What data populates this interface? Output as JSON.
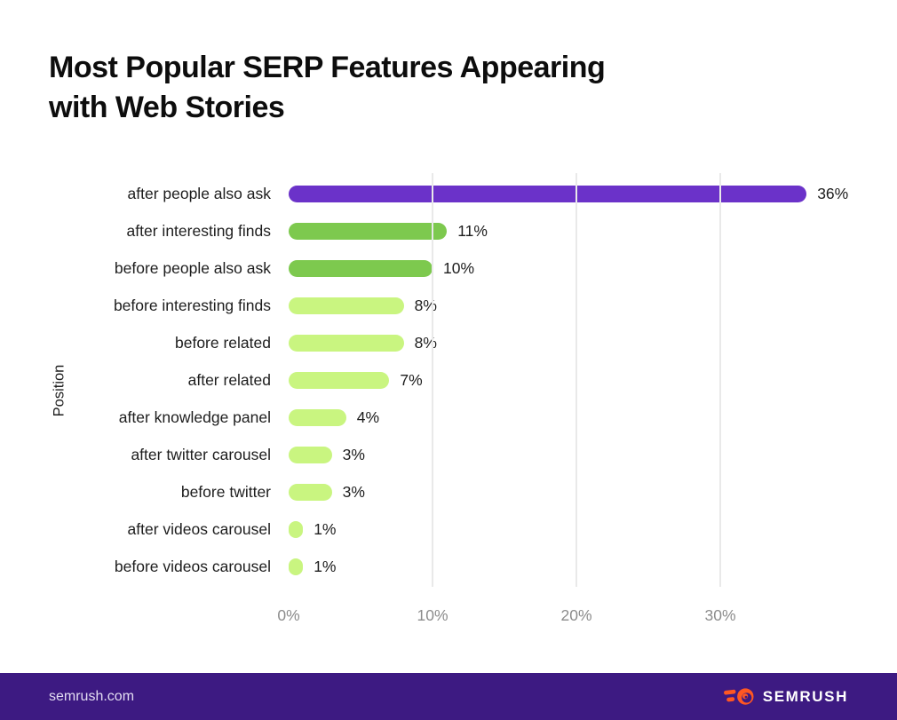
{
  "title": {
    "line1": "Most Popular SERP Features Appearing",
    "line2": "with Web Stories"
  },
  "chart_data": {
    "type": "bar",
    "orientation": "horizontal",
    "title": "Most Popular SERP Features Appearing with Web Stories",
    "ylabel": "Position",
    "xlabel": "",
    "xlim": [
      0,
      40
    ],
    "grid": true,
    "x_ticks": [
      {
        "value": 0,
        "label": "0%"
      },
      {
        "value": 10,
        "label": "10%"
      },
      {
        "value": 20,
        "label": "20%"
      },
      {
        "value": 30,
        "label": "30%"
      }
    ],
    "categories": [
      "after people also ask",
      "after interesting finds",
      "before people also ask",
      "before interesting finds",
      "before related",
      "after related",
      "after knowledge panel",
      "after twitter carousel",
      "before twitter",
      "after videos carousel",
      "before videos carousel"
    ],
    "values": [
      36,
      11,
      10,
      8,
      8,
      7,
      4,
      3,
      3,
      1,
      1
    ],
    "value_labels": [
      "36%",
      "11%",
      "10%",
      "8%",
      "8%",
      "7%",
      "4%",
      "3%",
      "3%",
      "1%",
      "1%"
    ],
    "bar_colors": [
      "#6b32c9",
      "#7dc94e",
      "#7dc94e",
      "#c9f580",
      "#c9f580",
      "#c9f580",
      "#c9f580",
      "#c9f580",
      "#c9f580",
      "#c9f580",
      "#c9f580"
    ]
  },
  "colors": {
    "bar_purple": "#6b32c9",
    "bar_green": "#7dc94e",
    "bar_light_green": "#c9f580",
    "gridline": "#e9e9e9",
    "axis_text": "#8c8c8c",
    "label_text": "#1d1d1d",
    "footer_bg": "#3d1a82",
    "logo_orange": "#ff5722"
  },
  "footer": {
    "site": "semrush.com",
    "brand": "SEMRUSH",
    "logo_icon": "semrush-flame-icon"
  }
}
